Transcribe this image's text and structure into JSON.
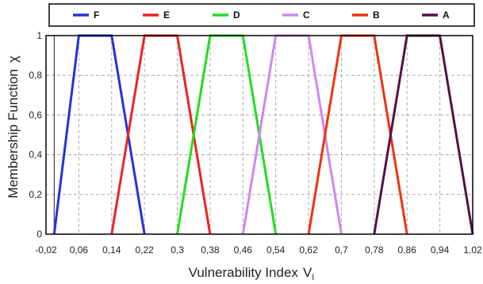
{
  "chart_data": {
    "type": "line",
    "title": "",
    "xlabel": "Vulnerability Index",
    "xlabel_sub": "I",
    "ylabel": "Membership Function",
    "ylabel_symbol": "χ",
    "xlim": [
      -0.02,
      1.02
    ],
    "ylim": [
      0,
      1
    ],
    "x_ticks": [
      -0.02,
      0.06,
      0.14,
      0.22,
      0.3,
      0.38,
      0.46,
      0.54,
      0.62,
      0.7,
      0.78,
      0.86,
      0.94,
      1.02
    ],
    "x_tick_labels": [
      "-0,02",
      "0,06",
      "0,14",
      "0,22",
      "0,3",
      "0,38",
      "0,46",
      "0,54",
      "0,62",
      "0,7",
      "0,78",
      "0,86",
      "0,94",
      "1,02"
    ],
    "y_ticks": [
      0,
      0.2,
      0.4,
      0.6,
      0.8,
      1
    ],
    "y_tick_labels": [
      "0",
      "0,2",
      "0,4",
      "0,6",
      "0,8",
      "1"
    ],
    "grid": true,
    "legend_position": "top",
    "series": [
      {
        "name": "F",
        "color": "#2233dd",
        "x": [
          0.0,
          0.06,
          0.14,
          0.22
        ],
        "y": [
          0,
          1,
          1,
          0
        ]
      },
      {
        "name": "E",
        "color": "#ee2222",
        "x": [
          0.14,
          0.22,
          0.3,
          0.38
        ],
        "y": [
          0,
          1,
          1,
          0
        ]
      },
      {
        "name": "D",
        "color": "#22dd22",
        "x": [
          0.3,
          0.38,
          0.46,
          0.54
        ],
        "y": [
          0,
          1,
          1,
          0
        ]
      },
      {
        "name": "C",
        "color": "#cc88ee",
        "x": [
          0.46,
          0.54,
          0.62,
          0.7
        ],
        "y": [
          0,
          1,
          1,
          0
        ]
      },
      {
        "name": "B",
        "color": "#ee3311",
        "x": [
          0.62,
          0.7,
          0.78,
          0.86
        ],
        "y": [
          0,
          1,
          1,
          0
        ]
      },
      {
        "name": "A",
        "color": "#551144",
        "x": [
          0.78,
          0.86,
          0.94,
          1.02
        ],
        "y": [
          0,
          1,
          1,
          0
        ]
      }
    ]
  }
}
